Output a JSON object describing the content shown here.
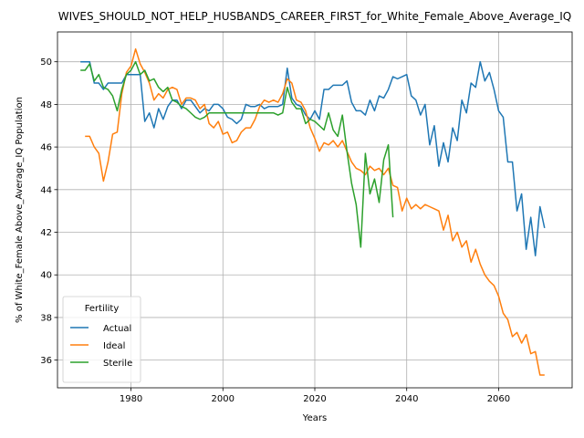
{
  "chart_data": {
    "type": "line",
    "title": "WIVES_SHOULD_NOT_HELP_HUSBANDS_CAREER_FIRST_for_White_Female_Above_Average_IQ",
    "xlabel": "Years",
    "ylabel": "% of White_Female Above_Average_IQ Population",
    "xlim": [
      1964,
      2076
    ],
    "ylim": [
      34.7,
      51.4
    ],
    "xticks": [
      1980,
      2000,
      2020,
      2040,
      2060
    ],
    "yticks": [
      36,
      38,
      40,
      42,
      44,
      46,
      48,
      50
    ],
    "grid": true,
    "legend": {
      "title": "Fertility",
      "position": "lower-left"
    },
    "colors": {
      "Actual": "#1f77b4",
      "Ideal": "#ff7f0e",
      "Sterile": "#2ca02c"
    },
    "series": [
      {
        "name": "Actual",
        "x": [
          1969,
          1970,
          1971,
          1972,
          1973,
          1974,
          1975,
          1976,
          1977,
          1978,
          1979,
          1980,
          1981,
          1982,
          1983,
          1984,
          1985,
          1986,
          1987,
          1988,
          1989,
          1990,
          1991,
          1992,
          1993,
          1994,
          1995,
          1996,
          1997,
          1998,
          1999,
          2000,
          2001,
          2002,
          2003,
          2004,
          2005,
          2006,
          2007,
          2008,
          2009,
          2010,
          2011,
          2012,
          2013,
          2014,
          2015,
          2016,
          2017,
          2018,
          2019,
          2020,
          2021,
          2022,
          2023,
          2024,
          2025,
          2026,
          2027,
          2028,
          2029,
          2030,
          2031,
          2032,
          2033,
          2034,
          2035,
          2036,
          2037,
          2038,
          2039,
          2040,
          2041,
          2042,
          2043,
          2044,
          2045,
          2046,
          2047,
          2048,
          2049,
          2050,
          2051,
          2052,
          2053,
          2054,
          2055,
          2056,
          2057,
          2058,
          2059,
          2060,
          2061,
          2062,
          2063,
          2064,
          2065,
          2066,
          2067,
          2068,
          2069,
          2070
        ],
        "values": [
          50.0,
          50.0,
          50.0,
          49.0,
          49.0,
          48.7,
          49.0,
          49.0,
          49.0,
          49.0,
          49.4,
          49.4,
          49.4,
          49.4,
          47.2,
          47.6,
          46.9,
          47.8,
          47.3,
          47.9,
          48.2,
          48.2,
          47.8,
          48.2,
          48.2,
          47.9,
          47.6,
          47.8,
          47.7,
          48.0,
          48.0,
          47.8,
          47.4,
          47.3,
          47.1,
          47.3,
          48.0,
          47.9,
          47.9,
          48.0,
          47.8,
          47.9,
          47.9,
          47.9,
          48.0,
          49.7,
          48.3,
          48.0,
          47.9,
          47.5,
          47.3,
          47.7,
          47.3,
          48.7,
          48.7,
          48.9,
          48.9,
          48.9,
          49.1,
          48.1,
          47.7,
          47.7,
          47.5,
          48.2,
          47.7,
          48.4,
          48.3,
          48.7,
          49.3,
          49.2,
          49.3,
          49.4,
          48.4,
          48.2,
          47.5,
          48.0,
          46.1,
          47.0,
          45.1,
          46.2,
          45.3,
          46.9,
          46.3,
          48.2,
          47.6,
          49.0,
          48.8,
          50.0,
          49.1,
          49.5,
          48.7,
          47.7,
          47.4,
          45.3,
          45.3,
          43.0,
          43.8,
          41.2,
          42.7,
          40.9,
          43.2,
          42.2
        ]
      },
      {
        "name": "Ideal",
        "x": [
          1969,
          1970,
          1971,
          1972,
          1973,
          1974,
          1975,
          1976,
          1977,
          1978,
          1979,
          1980,
          1981,
          1982,
          1983,
          1984,
          1985,
          1986,
          1987,
          1988,
          1989,
          1990,
          1991,
          1992,
          1993,
          1994,
          1995,
          1996,
          1997,
          1998,
          1999,
          2000,
          2001,
          2002,
          2003,
          2004,
          2005,
          2006,
          2007,
          2008,
          2009,
          2010,
          2011,
          2012,
          2013,
          2014,
          2015,
          2016,
          2017,
          2018,
          2019,
          2020,
          2021,
          2022,
          2023,
          2024,
          2025,
          2026,
          2027,
          2028,
          2029,
          2030,
          2031,
          2032,
          2033,
          2034,
          2035,
          2036,
          2037,
          2038,
          2039,
          2040,
          2041,
          2042,
          2043,
          2044,
          2045,
          2046,
          2047,
          2048,
          2049,
          2050,
          2051,
          2052,
          2053,
          2054,
          2055,
          2056,
          2057,
          2058,
          2059,
          2060,
          2061,
          2062,
          2063,
          2064,
          2065,
          2066,
          2067,
          2068,
          2069,
          2070
        ],
        "values": [
          null,
          46.5,
          46.5,
          46.0,
          45.7,
          44.4,
          45.3,
          46.6,
          46.7,
          48.5,
          49.5,
          49.8,
          50.6,
          49.9,
          49.5,
          49.0,
          48.2,
          48.5,
          48.3,
          48.7,
          48.8,
          48.7,
          48.0,
          48.3,
          48.3,
          48.2,
          47.8,
          48.0,
          47.1,
          46.9,
          47.2,
          46.6,
          46.7,
          46.2,
          46.3,
          46.7,
          46.9,
          46.9,
          47.3,
          47.9,
          48.2,
          48.1,
          48.2,
          48.1,
          48.5,
          49.2,
          49.0,
          48.2,
          48.1,
          47.7,
          46.9,
          46.4,
          45.8,
          46.2,
          46.1,
          46.3,
          46.0,
          46.3,
          45.8,
          45.3,
          45.0,
          44.9,
          44.7,
          45.1,
          44.9,
          45.0,
          44.7,
          45.0,
          44.2,
          44.1,
          43.0,
          43.6,
          43.1,
          43.3,
          43.1,
          43.3,
          43.2,
          43.1,
          43.0,
          42.1,
          42.8,
          41.6,
          42.0,
          41.3,
          41.6,
          40.6,
          41.2,
          40.5,
          40.0,
          39.7,
          39.5,
          39.0,
          38.2,
          37.9,
          37.1,
          37.3,
          36.8,
          37.2,
          36.3,
          36.4,
          35.3,
          35.3
        ]
      },
      {
        "name": "Sterile",
        "x": [
          1969,
          1970,
          1971,
          1972,
          1973,
          1974,
          1975,
          1976,
          1977,
          1978,
          1979,
          1980,
          1981,
          1982,
          1983,
          1984,
          1985,
          1986,
          1987,
          1988,
          1989,
          1990,
          1991,
          1992,
          1993,
          1994,
          1995,
          1996,
          1997,
          1998,
          1999,
          2000,
          2001,
          2002,
          2003,
          2004,
          2005,
          2006,
          2007,
          2008,
          2009,
          2010,
          2011,
          2012,
          2013,
          2014,
          2015,
          2016,
          2017,
          2018,
          2019,
          2020,
          2021,
          2022,
          2023,
          2024,
          2025,
          2026,
          2027,
          2028,
          2029,
          2030,
          2031,
          2032,
          2033,
          2034,
          2035,
          2036,
          2037
        ],
        "values": [
          49.6,
          49.6,
          49.9,
          49.1,
          49.4,
          48.8,
          48.7,
          48.4,
          47.7,
          48.7,
          49.4,
          49.6,
          50.0,
          49.4,
          49.6,
          49.1,
          49.2,
          48.8,
          48.6,
          48.8,
          48.2,
          48.1,
          47.9,
          47.8,
          47.6,
          47.4,
          47.3,
          47.4,
          47.6,
          47.6,
          47.6,
          47.6,
          47.6,
          47.6,
          47.6,
          47.6,
          47.6,
          47.6,
          47.6,
          47.6,
          47.6,
          47.6,
          47.6,
          47.5,
          47.6,
          48.8,
          48.1,
          47.8,
          47.8,
          47.1,
          47.3,
          47.2,
          47.0,
          46.8,
          47.6,
          46.8,
          46.5,
          47.5,
          45.8,
          44.3,
          43.3,
          41.3,
          45.7,
          43.8,
          44.5,
          43.4,
          45.4,
          46.1,
          42.7
        ]
      }
    ]
  }
}
